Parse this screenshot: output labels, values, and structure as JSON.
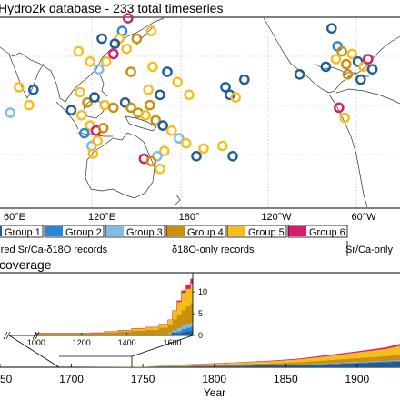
{
  "title": "Hydro2k database - 233 total timeseries",
  "map": {
    "lon_labels": [
      "60°E",
      "120°E",
      "180°",
      "120°W",
      "60°W"
    ],
    "lon_values": [
      60,
      120,
      180,
      240,
      300
    ],
    "lon_range": [
      50,
      325
    ],
    "lat_range": [
      -42,
      32
    ],
    "markers": [
      {
        "lon": 138,
        "lat": 32,
        "group": "Group 6"
      },
      {
        "lon": 134,
        "lat": 27,
        "group": "Group 2"
      },
      {
        "lon": 132,
        "lat": 24,
        "group": "Group 5"
      },
      {
        "lon": 144,
        "lat": 24,
        "group": "Group 4"
      },
      {
        "lon": 154,
        "lat": 27,
        "group": "Group 5"
      },
      {
        "lon": 129,
        "lat": 22,
        "group": "Group 1"
      },
      {
        "lon": 120,
        "lat": 24,
        "group": "Group 1"
      },
      {
        "lon": 137,
        "lat": 20,
        "group": "Group 5"
      },
      {
        "lon": 104,
        "lat": 19,
        "group": "Group 5"
      },
      {
        "lon": 112,
        "lat": 15,
        "group": "Group 5"
      },
      {
        "lon": 118,
        "lat": 12,
        "group": "Group 3"
      },
      {
        "lon": 128,
        "lat": 18,
        "group": "Group 6"
      },
      {
        "lon": 123,
        "lat": 15,
        "group": "Group 5"
      },
      {
        "lon": 140,
        "lat": 11,
        "group": "Group 4"
      },
      {
        "lon": 155,
        "lat": 13,
        "group": "Group 5"
      },
      {
        "lon": 165,
        "lat": 11,
        "group": "Group 1"
      },
      {
        "lon": 172,
        "lat": 7,
        "group": "Group 5"
      },
      {
        "lon": 152,
        "lat": 4,
        "group": "Group 5"
      },
      {
        "lon": 160,
        "lat": 2,
        "group": "Group 1"
      },
      {
        "lon": 180,
        "lat": 2,
        "group": "Group 5"
      },
      {
        "lon": 205,
        "lat": 5,
        "group": "Group 1"
      },
      {
        "lon": 208,
        "lat": 2,
        "group": "Group 1"
      },
      {
        "lon": 218,
        "lat": 8,
        "group": "Group 1"
      },
      {
        "lon": 212,
        "lat": 1,
        "group": "Group 5"
      },
      {
        "lon": 105,
        "lat": 3,
        "group": "Group 5"
      },
      {
        "lon": 110,
        "lat": -1,
        "group": "Group 4"
      },
      {
        "lon": 115,
        "lat": 1,
        "group": "Group 1"
      },
      {
        "lon": 122,
        "lat": -2,
        "group": "Group 5"
      },
      {
        "lon": 128,
        "lat": -3,
        "group": "Group 4"
      },
      {
        "lon": 136,
        "lat": -1,
        "group": "Group 1"
      },
      {
        "lon": 140,
        "lat": -3,
        "group": "Group 4"
      },
      {
        "lon": 145,
        "lat": -5,
        "group": "Group 4"
      },
      {
        "lon": 150,
        "lat": -6,
        "group": "Group 5"
      },
      {
        "lon": 153,
        "lat": -2,
        "group": "Group 4"
      },
      {
        "lon": 157,
        "lat": -8,
        "group": "Group 4"
      },
      {
        "lon": 162,
        "lat": -10,
        "group": "Group 1"
      },
      {
        "lon": 168,
        "lat": -12,
        "group": "Group 5"
      },
      {
        "lon": 173,
        "lat": -15,
        "group": "Group 3"
      },
      {
        "lon": 178,
        "lat": -17,
        "group": "Group 5"
      },
      {
        "lon": 163,
        "lat": -20,
        "group": "Group 5"
      },
      {
        "lon": 158,
        "lat": -22,
        "group": "Group 3"
      },
      {
        "lon": 190,
        "lat": -19,
        "group": "Group 5"
      },
      {
        "lon": 203,
        "lat": -18,
        "group": "Group 5"
      },
      {
        "lon": 210,
        "lat": -22,
        "group": "Group 1"
      },
      {
        "lon": 185,
        "lat": -22,
        "group": "Group 1"
      },
      {
        "lon": 160,
        "lat": -27,
        "group": "Group 5"
      },
      {
        "lon": 149,
        "lat": -23,
        "group": "Group 6"
      },
      {
        "lon": 154,
        "lat": -24,
        "group": "Group 4"
      },
      {
        "lon": 112,
        "lat": -10,
        "group": "Group 5"
      },
      {
        "lon": 106,
        "lat": -6,
        "group": "Group 5"
      },
      {
        "lon": 99,
        "lat": -4,
        "group": "Group 1"
      },
      {
        "lon": 108,
        "lat": -13,
        "group": "Group 2"
      },
      {
        "lon": 116,
        "lat": -12,
        "group": "Group 6"
      },
      {
        "lon": 121,
        "lat": -11,
        "group": "Group 4"
      },
      {
        "lon": 113,
        "lat": -18,
        "group": "Group 3"
      },
      {
        "lon": 114,
        "lat": -21,
        "group": "Group 5"
      },
      {
        "lon": 117,
        "lat": -16,
        "group": "Group 5"
      },
      {
        "lon": 63,
        "lat": 5,
        "group": "Group 5"
      },
      {
        "lon": 73,
        "lat": 4,
        "group": "Group 1"
      },
      {
        "lon": 70,
        "lat": -2,
        "group": "Group 5"
      },
      {
        "lon": 57,
        "lat": -5,
        "group": "Group 3"
      },
      {
        "lon": 278,
        "lat": 28,
        "group": "Group 1"
      },
      {
        "lon": 282,
        "lat": 21,
        "group": "Group 2"
      },
      {
        "lon": 285,
        "lat": 19,
        "group": "Group 4"
      },
      {
        "lon": 292,
        "lat": 18,
        "group": "Group 5"
      },
      {
        "lon": 296,
        "lat": 15,
        "group": "Group 1"
      },
      {
        "lon": 300,
        "lat": 13,
        "group": "Group 5"
      },
      {
        "lon": 303,
        "lat": 16,
        "group": "Group 6"
      },
      {
        "lon": 306,
        "lat": 12,
        "group": "Group 1"
      },
      {
        "lon": 288,
        "lat": 14,
        "group": "Group 4"
      },
      {
        "lon": 281,
        "lat": 16,
        "group": "Group 5"
      },
      {
        "lon": 274,
        "lat": 13,
        "group": "Group 1"
      },
      {
        "lon": 289,
        "lat": 10,
        "group": "Group 4"
      },
      {
        "lon": 298,
        "lat": 8,
        "group": "Group 1"
      },
      {
        "lon": 256,
        "lat": 10,
        "group": "Group 1"
      },
      {
        "lon": 283,
        "lat": -3,
        "group": "Group 6"
      },
      {
        "lon": 287,
        "lat": -7,
        "group": "Group 5"
      }
    ]
  },
  "legend": {
    "groups": [
      {
        "label": "Group 1",
        "color": "#1f5c99"
      },
      {
        "label": "Group 2",
        "color": "#2b86d8"
      },
      {
        "label": "Group 3",
        "color": "#7fbce8"
      },
      {
        "label": "Group 4",
        "color": "#c9900c"
      },
      {
        "label": "Group 5",
        "color": "#f5be1a"
      },
      {
        "label": "Group 6",
        "color": "#d81c6b"
      }
    ],
    "categories": [
      {
        "label": "paired Sr/Ca-δ18O records"
      },
      {
        "label": "δ18O-only records"
      },
      {
        "label": "Sr/Ca-only"
      }
    ]
  },
  "chart_data": {
    "title": "coverage",
    "type": "area",
    "xlabel": "Year",
    "x_ticks": [
      1650,
      1700,
      1750,
      1800,
      1850,
      1900
    ],
    "xlim": [
      1650,
      1930
    ],
    "ylim": [
      0,
      233
    ],
    "series": [
      {
        "name": "Group 1",
        "color": "#1f5c99",
        "x": [
          1650,
          1700,
          1750,
          1760,
          1780,
          1800,
          1820,
          1840,
          1860,
          1880,
          1900,
          1920,
          1930
        ],
        "values": [
          0,
          0,
          0,
          2,
          2,
          3,
          4,
          5,
          6,
          8,
          10,
          13,
          14
        ]
      },
      {
        "name": "Group 2",
        "color": "#2b86d8",
        "x": [
          1650,
          1700,
          1750,
          1760,
          1780,
          1800,
          1820,
          1840,
          1860,
          1880,
          1900,
          1920,
          1930
        ],
        "values": [
          0,
          0,
          0,
          0,
          0,
          0,
          0,
          0,
          1,
          1,
          2,
          2,
          3
        ]
      },
      {
        "name": "Group 3",
        "color": "#7fbce8",
        "x": [
          1650,
          1700,
          1750,
          1760,
          1780,
          1800,
          1820,
          1840,
          1860,
          1880,
          1900,
          1920,
          1930
        ],
        "values": [
          0,
          0,
          0,
          0,
          0,
          0,
          0,
          0,
          0,
          1,
          1,
          1,
          1
        ]
      },
      {
        "name": "Group 4",
        "color": "#c9900c",
        "x": [
          1650,
          1700,
          1750,
          1760,
          1780,
          1800,
          1820,
          1840,
          1860,
          1880,
          1900,
          1920,
          1930
        ],
        "values": [
          0,
          0,
          0,
          1,
          2,
          3,
          4,
          5,
          6,
          8,
          10,
          12,
          14
        ]
      },
      {
        "name": "Group 5",
        "color": "#f5be1a",
        "x": [
          1650,
          1700,
          1750,
          1760,
          1780,
          1800,
          1820,
          1840,
          1860,
          1880,
          1900,
          1920,
          1930
        ],
        "values": [
          0,
          0,
          1,
          1,
          2,
          3,
          4,
          5,
          7,
          10,
          14,
          18,
          22
        ]
      },
      {
        "name": "Group 6",
        "color": "#d81c6b",
        "x": [
          1650,
          1700,
          1750,
          1760,
          1780,
          1800,
          1820,
          1840,
          1860,
          1880,
          1900,
          1920,
          1930
        ],
        "values": [
          0,
          0,
          0,
          0,
          1,
          1,
          1,
          2,
          2,
          3,
          3,
          4,
          5
        ]
      }
    ],
    "inset": {
      "x_ticks": [
        1000,
        1200,
        1400,
        1600
      ],
      "y_ticks": [
        0,
        5,
        10
      ],
      "xlim": [
        880,
        1690
      ],
      "ylim": [
        0,
        14
      ],
      "stack_x": [
        880,
        940,
        1000,
        1060,
        1120,
        1180,
        1240,
        1300,
        1360,
        1420,
        1480,
        1540,
        1580,
        1600,
        1620,
        1640,
        1660,
        1680,
        1690
      ],
      "series": [
        {
          "name": "Group 1",
          "color": "#1f5c99",
          "values": [
            0,
            0,
            0,
            0,
            0,
            0,
            0,
            0,
            0,
            0,
            0,
            0,
            0.3,
            0.5,
            0.5,
            0.8,
            1.0,
            1.0,
            1.0
          ]
        },
        {
          "name": "Group 2",
          "color": "#2b86d8",
          "values": [
            0,
            0,
            0,
            0,
            0,
            0,
            0,
            0,
            0,
            0,
            0,
            0,
            0,
            0.3,
            0.5,
            0.7,
            0.8,
            1.0,
            1.0
          ]
        },
        {
          "name": "Group 3",
          "color": "#7fbce8",
          "values": [
            0,
            0,
            0,
            0,
            0,
            0,
            0,
            0,
            0,
            0,
            0,
            0,
            0.3,
            0.4,
            0.7,
            0.8,
            0.9,
            1.0,
            1.0
          ]
        },
        {
          "name": "Group 4",
          "color": "#c9900c",
          "values": [
            0,
            0,
            0.5,
            0.5,
            0.5,
            0.5,
            0.6,
            0.7,
            0.9,
            1.1,
            1.3,
            1.8,
            2.0,
            2.5,
            3.0,
            3.5,
            4.0,
            4.5,
            5.0
          ]
        },
        {
          "name": "Group 5",
          "color": "#f5be1a",
          "values": [
            0,
            0,
            0,
            0,
            0,
            0,
            0,
            0.2,
            0.3,
            0.5,
            0.6,
            0.8,
            1.0,
            2.0,
            3.0,
            4.0,
            4.0,
            4.5,
            4.5
          ]
        },
        {
          "name": "Group 6",
          "color": "#d81c6b",
          "values": [
            0,
            0,
            0,
            0,
            0,
            0,
            0,
            0,
            0,
            0,
            0,
            0,
            0,
            0,
            0.3,
            0.5,
            1.0,
            1.0,
            1.2
          ]
        }
      ]
    }
  }
}
